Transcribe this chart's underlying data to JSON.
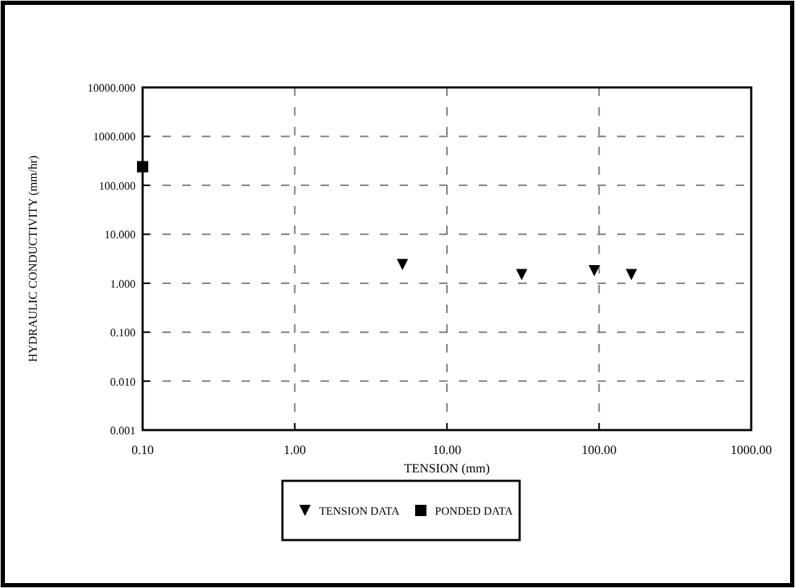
{
  "chart_data": {
    "type": "scatter",
    "xlabel": "TENSION (mm)",
    "ylabel": "HYDRAULIC CONDUCTIVITY (mm/hr)",
    "log": "xy",
    "grid": true,
    "legend": "bottom",
    "xlim": [
      0.1,
      1000
    ],
    "xticks": [
      {
        "value": 0.1,
        "label": "0.10"
      },
      {
        "value": 1,
        "label": "1.00"
      },
      {
        "value": 10,
        "label": "10.00"
      },
      {
        "value": 100,
        "label": "100.00"
      },
      {
        "value": 1000,
        "label": "1000.00"
      }
    ],
    "ylim": [
      0.001,
      10000
    ],
    "yticks": [
      {
        "value": 0.001,
        "label": "0.001"
      },
      {
        "value": 0.01,
        "label": "0.010"
      },
      {
        "value": 0.1,
        "label": "0.100"
      },
      {
        "value": 1,
        "label": "1.000"
      },
      {
        "value": 10,
        "label": "10.000"
      },
      {
        "value": 100,
        "label": "100.000"
      },
      {
        "value": 1000,
        "label": "1000.000"
      },
      {
        "value": 10000,
        "label": "10000.000"
      }
    ],
    "series": [
      {
        "name": "TENSION DATA",
        "color": "#000000",
        "marker": "triangle",
        "x": [
          5.1,
          31,
          93,
          163
        ],
        "values": [
          2.4,
          1.5,
          1.8,
          1.5
        ]
      },
      {
        "name": "PONDED DATA",
        "color": "#000000",
        "marker": "square",
        "x": [
          0.1
        ],
        "values": [
          240
        ]
      }
    ]
  }
}
